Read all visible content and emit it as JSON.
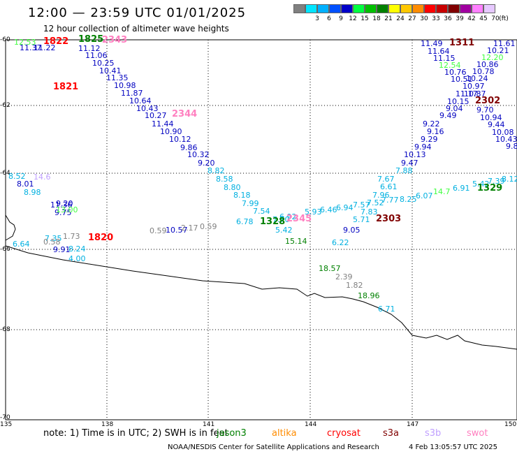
{
  "header": {
    "title": "12:00 — 23:59 UTC 01/01/2025",
    "subtitle": "12 hour collection of altimeter wave heights"
  },
  "legend": {
    "unit": "(ft)",
    "items": [
      {
        "label": "",
        "color": "#808080"
      },
      {
        "label": "3",
        "color": "#00e5ff"
      },
      {
        "label": "6",
        "color": "#00b0ff"
      },
      {
        "label": "9",
        "color": "#0050ff"
      },
      {
        "label": "12",
        "color": "#0000c8"
      },
      {
        "label": "15",
        "color": "#00ff40"
      },
      {
        "label": "18",
        "color": "#00c000"
      },
      {
        "label": "21",
        "color": "#008000"
      },
      {
        "label": "24",
        "color": "#ffff00"
      },
      {
        "label": "27",
        "color": "#ffc800"
      },
      {
        "label": "30",
        "color": "#ff8c00"
      },
      {
        "label": "33",
        "color": "#ff0000"
      },
      {
        "label": "36",
        "color": "#c80000"
      },
      {
        "label": "39",
        "color": "#800000"
      },
      {
        "label": "42",
        "color": "#a000a0"
      },
      {
        "label": "45",
        "color": "#ff80ff"
      },
      {
        "label": "70",
        "color": "#e6c8ff"
      }
    ]
  },
  "axes": {
    "lat_labels": [
      "-60",
      "-62",
      "-64",
      "-66",
      "-68",
      "-70"
    ],
    "lon_labels": [
      "135",
      "138",
      "141",
      "144",
      "147",
      "150"
    ]
  },
  "pass_labels": [
    {
      "text": "1822",
      "color": "#ff0000"
    },
    {
      "text": "1825",
      "color": "#008000"
    },
    {
      "text": "2343",
      "color": "#ff80c0"
    },
    {
      "text": "1311",
      "color": "#800000"
    },
    {
      "text": "1821",
      "color": "#ff0000"
    },
    {
      "text": "2344",
      "color": "#ff80c0"
    },
    {
      "text": "2302",
      "color": "#800000"
    },
    {
      "text": "1329",
      "color": "#008000"
    },
    {
      "text": "1328",
      "color": "#008000"
    },
    {
      "text": "2345",
      "color": "#ff80c0"
    },
    {
      "text": "2303",
      "color": "#800000"
    },
    {
      "text": "1820",
      "color": "#ff0000"
    }
  ],
  "wave_labels": [
    {
      "text": "12.53",
      "color": "#40ff40"
    },
    {
      "text": "11.37",
      "color": "#0000c0"
    },
    {
      "text": "11.22",
      "color": "#0000c0"
    },
    {
      "text": "11.12",
      "color": "#0000c0"
    },
    {
      "text": "11.06",
      "color": "#0000c0"
    },
    {
      "text": "10.25",
      "color": "#0000c0"
    },
    {
      "text": "10.41",
      "color": "#0000c0"
    },
    {
      "text": "11.35",
      "color": "#0000c0"
    },
    {
      "text": "10.98",
      "color": "#0000c0"
    },
    {
      "text": "11.87",
      "color": "#0000c0"
    },
    {
      "text": "10.64",
      "color": "#0000c0"
    },
    {
      "text": "10.43",
      "color": "#0000c0"
    },
    {
      "text": "10.27",
      "color": "#0000c0"
    },
    {
      "text": "11.44",
      "color": "#0000c0"
    },
    {
      "text": "10.90",
      "color": "#0000c0"
    },
    {
      "text": "10.12",
      "color": "#0000c0"
    },
    {
      "text": "9.86",
      "color": "#0000c0"
    },
    {
      "text": "10.32",
      "color": "#0000c0"
    },
    {
      "text": "9.20",
      "color": "#0000c0"
    },
    {
      "text": "8.82",
      "color": "#00b0e0"
    },
    {
      "text": "8.58",
      "color": "#00b0e0"
    },
    {
      "text": "8.80",
      "color": "#00b0e0"
    },
    {
      "text": "8.18",
      "color": "#00b0e0"
    },
    {
      "text": "7.99",
      "color": "#00b0e0"
    },
    {
      "text": "7.54",
      "color": "#00b0e0"
    },
    {
      "text": "6.78",
      "color": "#00b0e0"
    },
    {
      "text": "7.70",
      "color": "#00b0e0"
    },
    {
      "text": "6.92",
      "color": "#00b0e0"
    },
    {
      "text": "5.93",
      "color": "#00b0e0"
    },
    {
      "text": "6.46",
      "color": "#00b0e0"
    },
    {
      "text": "6.94",
      "color": "#00b0e0"
    },
    {
      "text": "7.57",
      "color": "#00b0e0"
    },
    {
      "text": "7.52",
      "color": "#00b0e0"
    },
    {
      "text": "7.77",
      "color": "#00b0e0"
    },
    {
      "text": "7.83",
      "color": "#00b0e0"
    },
    {
      "text": "5.42",
      "color": "#00b0e0"
    },
    {
      "text": "5.71",
      "color": "#00b0e0"
    },
    {
      "text": "9.05",
      "color": "#0000c0"
    },
    {
      "text": "6.22",
      "color": "#00b0e0"
    },
    {
      "text": "15.14",
      "color": "#008000"
    },
    {
      "text": "7.96",
      "color": "#00b0e0"
    },
    {
      "text": "6.61",
      "color": "#00b0e0"
    },
    {
      "text": "7.67",
      "color": "#00b0e0"
    },
    {
      "text": "8.25",
      "color": "#00b0e0"
    },
    {
      "text": "6.07",
      "color": "#00b0e0"
    },
    {
      "text": "7.88",
      "color": "#00b0e0"
    },
    {
      "text": "9.47",
      "color": "#0000c0"
    },
    {
      "text": "10.13",
      "color": "#0000c0"
    },
    {
      "text": "9.94",
      "color": "#0000c0"
    },
    {
      "text": "9.29",
      "color": "#0000c0"
    },
    {
      "text": "9.16",
      "color": "#0000c0"
    },
    {
      "text": "9.22",
      "color": "#0000c0"
    },
    {
      "text": "9.49",
      "color": "#0000c0"
    },
    {
      "text": "9.04",
      "color": "#0000c0"
    },
    {
      "text": "10.15",
      "color": "#0000c0"
    },
    {
      "text": "11.49",
      "color": "#0000c0"
    },
    {
      "text": "11.64",
      "color": "#0000c0"
    },
    {
      "text": "11.15",
      "color": "#0000c0"
    },
    {
      "text": "12.54",
      "color": "#40ff40"
    },
    {
      "text": "10.76",
      "color": "#0000c0"
    },
    {
      "text": "10.51",
      "color": "#0000c0"
    },
    {
      "text": "11.61",
      "color": "#0000c0"
    },
    {
      "text": "10.21",
      "color": "#0000c0"
    },
    {
      "text": "12.20",
      "color": "#40ff40"
    },
    {
      "text": "10.86",
      "color": "#0000c0"
    },
    {
      "text": "10.78",
      "color": "#0000c0"
    },
    {
      "text": "10.24",
      "color": "#0000c0"
    },
    {
      "text": "9.70",
      "color": "#0000c0"
    },
    {
      "text": "10.94",
      "color": "#0000c0"
    },
    {
      "text": "9.44",
      "color": "#0000c0"
    },
    {
      "text": "10.08",
      "color": "#0000c0"
    },
    {
      "text": "10.43",
      "color": "#0000c0"
    },
    {
      "text": "9.8",
      "color": "#0000c0"
    },
    {
      "text": "14.7",
      "color": "#40ff40"
    },
    {
      "text": "6.91",
      "color": "#00b0e0"
    },
    {
      "text": "5.42",
      "color": "#00b0e0"
    },
    {
      "text": "7.39",
      "color": "#00b0e0"
    },
    {
      "text": "8.12",
      "color": "#00b0e0"
    },
    {
      "text": "8.52",
      "color": "#00b0e0"
    },
    {
      "text": "8.01",
      "color": "#0000c0"
    },
    {
      "text": "8.98",
      "color": "#00b0e0"
    },
    {
      "text": "14.6",
      "color": "#c0a0ff"
    },
    {
      "text": "11.36",
      "color": "#0000c0"
    },
    {
      "text": "9.75",
      "color": "#0000c0"
    },
    {
      "text": "9.20",
      "color": "#0000c0"
    },
    {
      "text": "13.00",
      "color": "#40ff40"
    },
    {
      "text": "6.64",
      "color": "#00b0e0"
    },
    {
      "text": "7.35",
      "color": "#00b0e0"
    },
    {
      "text": "0.58",
      "color": "#808080"
    },
    {
      "text": "1.73",
      "color": "#808080"
    },
    {
      "text": "9.91",
      "color": "#0000c0"
    },
    {
      "text": "8.24",
      "color": "#00b0e0"
    },
    {
      "text": "4.00",
      "color": "#00b0e0"
    },
    {
      "text": "0.59",
      "color": "#808080"
    },
    {
      "text": "10.57",
      "color": "#0000c0"
    },
    {
      "text": "2.17",
      "color": "#808080"
    },
    {
      "text": "0.59",
      "color": "#808080"
    },
    {
      "text": "18.57",
      "color": "#008000"
    },
    {
      "text": "2.39",
      "color": "#808080"
    },
    {
      "text": "1.82",
      "color": "#808080"
    },
    {
      "text": "18.96",
      "color": "#008000"
    },
    {
      "text": "6.71",
      "color": "#00b0e0"
    },
    {
      "text": "11.17",
      "color": "#0000c0"
    },
    {
      "text": "10.87",
      "color": "#0000c0"
    },
    {
      "text": "10.97",
      "color": "#0000c0"
    }
  ],
  "footer": {
    "note": "note:  1) Time is in UTC; 2) SWH is in feet",
    "satellites": [
      {
        "name": "jason3",
        "color": "#008000"
      },
      {
        "name": "altika",
        "color": "#ff8c00"
      },
      {
        "name": "cryosat",
        "color": "#ff0000"
      },
      {
        "name": "s3a",
        "color": "#800000"
      },
      {
        "name": "s3b",
        "color": "#c0a0ff"
      },
      {
        "name": "swot",
        "color": "#ff80c0"
      }
    ],
    "credit": "NOAA/NESDIS Center for Satellite Applications and Research",
    "timestamp": "4 Feb 13:05:57 UTC 2025"
  }
}
